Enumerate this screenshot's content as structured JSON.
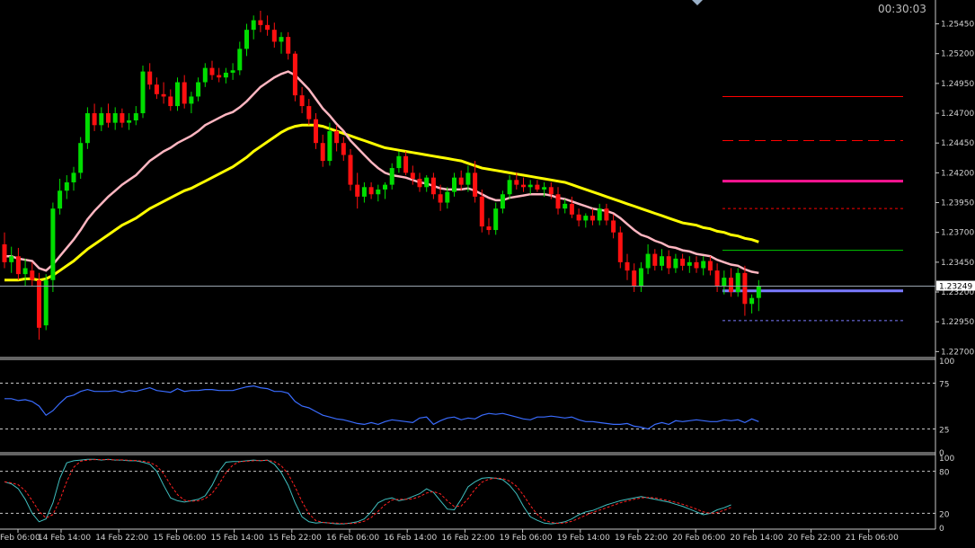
{
  "timer": "00:30:03",
  "colors": {
    "bull": "#00dd00",
    "bear": "#ff1010",
    "ma_fast": "#ffb6c1",
    "ma_slow": "#ffff00",
    "rsi": "#3a6cff",
    "stoch_main": "#40c0c0",
    "stoch_signal": "#ff2020",
    "pivot": "#ff0000",
    "pivot_strong": "#ff1493",
    "support": "#00cc00",
    "current_level": "#7b7bff",
    "price_line": "#9aa4b0"
  },
  "chart_data": {
    "type": "candlestick",
    "price_axis": {
      "ticks": [
        "1.25450",
        "1.25200",
        "1.24950",
        "1.24700",
        "1.24450",
        "1.24200",
        "1.23950",
        "1.23700",
        "1.23450",
        "1.23200",
        "1.22950",
        "1.22700"
      ],
      "range": [
        1.2265,
        1.2565
      ]
    },
    "current_price": "1.23249",
    "time_axis": {
      "labels": [
        "Feb 06:00",
        "14 Feb 14:00",
        "14 Feb 22:00",
        "15 Feb 06:00",
        "15 Feb 14:00",
        "15 Feb 22:00",
        "16 Feb 06:00",
        "16 Feb 14:00",
        "16 Feb 22:00",
        "19 Feb 06:00",
        "19 Feb 14:00",
        "19 Feb 22:00",
        "20 Feb 06:00",
        "20 Feb 14:00",
        "20 Feb 22:00",
        "21 Feb 06:00"
      ]
    },
    "ohlc": [
      [
        1.236,
        1.237,
        1.234,
        1.2345
      ],
      [
        1.2345,
        1.2358,
        1.2336,
        1.235
      ],
      [
        1.235,
        1.2357,
        1.233,
        1.2335
      ],
      [
        1.2335,
        1.2348,
        1.2325,
        1.234
      ],
      [
        1.2338,
        1.2345,
        1.2325,
        1.233
      ],
      [
        1.233,
        1.2336,
        1.228,
        1.229
      ],
      [
        1.2292,
        1.2335,
        1.2288,
        1.233
      ],
      [
        1.233,
        1.2395,
        1.232,
        1.239
      ],
      [
        1.239,
        1.2415,
        1.2385,
        1.2405
      ],
      [
        1.2405,
        1.2418,
        1.2398,
        1.2412
      ],
      [
        1.2412,
        1.2425,
        1.2405,
        1.242
      ],
      [
        1.242,
        1.245,
        1.2415,
        1.2445
      ],
      [
        1.2445,
        1.2475,
        1.244,
        1.247
      ],
      [
        1.247,
        1.2478,
        1.2455,
        1.246
      ],
      [
        1.246,
        1.2475,
        1.2455,
        1.247
      ],
      [
        1.247,
        1.2478,
        1.2458,
        1.2462
      ],
      [
        1.2462,
        1.2475,
        1.2456,
        1.247
      ],
      [
        1.247,
        1.2474,
        1.2458,
        1.2462
      ],
      [
        1.2462,
        1.247,
        1.2456,
        1.2464
      ],
      [
        1.2464,
        1.2476,
        1.246,
        1.247
      ],
      [
        1.247,
        1.251,
        1.2466,
        1.2505
      ],
      [
        1.2505,
        1.2512,
        1.249,
        1.2494
      ],
      [
        1.2494,
        1.25,
        1.2482,
        1.2486
      ],
      [
        1.2486,
        1.2496,
        1.2478,
        1.2484
      ],
      [
        1.2484,
        1.249,
        1.2472,
        1.2476
      ],
      [
        1.2476,
        1.25,
        1.2472,
        1.2496
      ],
      [
        1.2496,
        1.2502,
        1.2474,
        1.2478
      ],
      [
        1.2478,
        1.2488,
        1.247,
        1.2484
      ],
      [
        1.2484,
        1.25,
        1.248,
        1.2496
      ],
      [
        1.2496,
        1.2512,
        1.2492,
        1.2508
      ],
      [
        1.2508,
        1.2514,
        1.2498,
        1.2502
      ],
      [
        1.2502,
        1.2508,
        1.2496,
        1.25
      ],
      [
        1.25,
        1.2508,
        1.2495,
        1.2504
      ],
      [
        1.2504,
        1.2512,
        1.2498,
        1.2506
      ],
      [
        1.2506,
        1.253,
        1.2502,
        1.2524
      ],
      [
        1.2524,
        1.2545,
        1.2518,
        1.254
      ],
      [
        1.254,
        1.2552,
        1.2532,
        1.2548
      ],
      [
        1.2548,
        1.2556,
        1.2538,
        1.2544
      ],
      [
        1.2544,
        1.2552,
        1.2535,
        1.254
      ],
      [
        1.254,
        1.2546,
        1.2525,
        1.253
      ],
      [
        1.253,
        1.2538,
        1.252,
        1.2534
      ],
      [
        1.2534,
        1.2538,
        1.2515,
        1.252
      ],
      [
        1.252,
        1.2522,
        1.248,
        1.2485
      ],
      [
        1.2485,
        1.2492,
        1.247,
        1.2476
      ],
      [
        1.2476,
        1.2482,
        1.246,
        1.2465
      ],
      [
        1.2465,
        1.247,
        1.244,
        1.2445
      ],
      [
        1.2445,
        1.2452,
        1.2425,
        1.243
      ],
      [
        1.243,
        1.2462,
        1.2426,
        1.2455
      ],
      [
        1.2455,
        1.246,
        1.2438,
        1.2445
      ],
      [
        1.2445,
        1.245,
        1.243,
        1.2435
      ],
      [
        1.2435,
        1.244,
        1.2405,
        1.241
      ],
      [
        1.241,
        1.242,
        1.239,
        1.24
      ],
      [
        1.24,
        1.2412,
        1.2395,
        1.2408
      ],
      [
        1.2408,
        1.2412,
        1.2398,
        1.2402
      ],
      [
        1.2402,
        1.241,
        1.2396,
        1.2406
      ],
      [
        1.2406,
        1.2412,
        1.2398,
        1.241
      ],
      [
        1.241,
        1.2428,
        1.2406,
        1.2424
      ],
      [
        1.2424,
        1.2438,
        1.242,
        1.2434
      ],
      [
        1.2434,
        1.2438,
        1.2418,
        1.242
      ],
      [
        1.242,
        1.2426,
        1.241,
        1.2415
      ],
      [
        1.2415,
        1.242,
        1.2404,
        1.2408
      ],
      [
        1.2408,
        1.2418,
        1.2404,
        1.2416
      ],
      [
        1.2416,
        1.242,
        1.2398,
        1.2402
      ],
      [
        1.2402,
        1.241,
        1.2388,
        1.2395
      ],
      [
        1.2395,
        1.2408,
        1.239,
        1.2404
      ],
      [
        1.2404,
        1.242,
        1.24,
        1.2416
      ],
      [
        1.2416,
        1.2422,
        1.2405,
        1.241
      ],
      [
        1.241,
        1.2426,
        1.2404,
        1.242
      ],
      [
        1.242,
        1.243,
        1.2395,
        1.24
      ],
      [
        1.24,
        1.2406,
        1.237,
        1.2375
      ],
      [
        1.2375,
        1.2382,
        1.2368,
        1.2372
      ],
      [
        1.2372,
        1.2395,
        1.2368,
        1.239
      ],
      [
        1.239,
        1.2405,
        1.2386,
        1.2402
      ],
      [
        1.2402,
        1.2418,
        1.2398,
        1.2414
      ],
      [
        1.2414,
        1.242,
        1.2406,
        1.241
      ],
      [
        1.241,
        1.2416,
        1.2404,
        1.2408
      ],
      [
        1.2408,
        1.2414,
        1.2402,
        1.241
      ],
      [
        1.241,
        1.2414,
        1.2404,
        1.2406
      ],
      [
        1.2406,
        1.2412,
        1.24,
        1.2408
      ],
      [
        1.2408,
        1.2412,
        1.2398,
        1.2402
      ],
      [
        1.2402,
        1.2408,
        1.2385,
        1.239
      ],
      [
        1.239,
        1.2398,
        1.2386,
        1.2394
      ],
      [
        1.2394,
        1.24,
        1.2382,
        1.2385
      ],
      [
        1.2385,
        1.239,
        1.2375,
        1.238
      ],
      [
        1.238,
        1.2386,
        1.2374,
        1.2384
      ],
      [
        1.2384,
        1.239,
        1.2376,
        1.238
      ],
      [
        1.238,
        1.2394,
        1.2376,
        1.239
      ],
      [
        1.239,
        1.2394,
        1.2376,
        1.238
      ],
      [
        1.238,
        1.2385,
        1.2365,
        1.237
      ],
      [
        1.237,
        1.2375,
        1.234,
        1.2345
      ],
      [
        1.2345,
        1.2352,
        1.233,
        1.2338
      ],
      [
        1.2338,
        1.2344,
        1.232,
        1.2325
      ],
      [
        1.2325,
        1.2345,
        1.232,
        1.234
      ],
      [
        1.234,
        1.236,
        1.2335,
        1.2352
      ],
      [
        1.2352,
        1.2356,
        1.2338,
        1.2342
      ],
      [
        1.2342,
        1.2356,
        1.2338,
        1.235
      ],
      [
        1.235,
        1.2355,
        1.2335,
        1.234
      ],
      [
        1.234,
        1.2352,
        1.2336,
        1.2348
      ],
      [
        1.2348,
        1.2352,
        1.2338,
        1.2342
      ],
      [
        1.2342,
        1.235,
        1.2336,
        1.2345
      ],
      [
        1.2345,
        1.235,
        1.2336,
        1.234
      ],
      [
        1.234,
        1.235,
        1.2334,
        1.2346
      ],
      [
        1.2346,
        1.235,
        1.2334,
        1.2338
      ],
      [
        1.2338,
        1.2344,
        1.232,
        1.2325
      ],
      [
        1.2325,
        1.2338,
        1.2318,
        1.2332
      ],
      [
        1.2332,
        1.234,
        1.2316,
        1.232
      ],
      [
        1.232,
        1.234,
        1.2316,
        1.2336
      ],
      [
        1.2336,
        1.2342,
        1.23,
        1.231
      ],
      [
        1.231,
        1.2318,
        1.2302,
        1.2315
      ],
      [
        1.2315,
        1.233,
        1.2304,
        1.2325
      ]
    ],
    "ma_fast": [
      1.235,
      1.235,
      1.2348,
      1.2347,
      1.2346,
      1.234,
      1.2338,
      1.2343,
      1.235,
      1.2357,
      1.2364,
      1.2372,
      1.2381,
      1.2388,
      1.2394,
      1.24,
      1.2405,
      1.241,
      1.2414,
      1.2418,
      1.2424,
      1.243,
      1.2434,
      1.2438,
      1.2441,
      1.2445,
      1.2448,
      1.2451,
      1.2455,
      1.246,
      1.2463,
      1.2466,
      1.2469,
      1.2471,
      1.2475,
      1.248,
      1.2486,
      1.2492,
      1.2496,
      1.25,
      1.2503,
      1.2505,
      1.2502,
      1.2496,
      1.249,
      1.2482,
      1.2474,
      1.2468,
      1.2461,
      1.2455,
      1.2447,
      1.2441,
      1.2435,
      1.2429,
      1.2424,
      1.242,
      1.2418,
      1.2417,
      1.2416,
      1.2414,
      1.2412,
      1.2411,
      1.2409,
      1.2407,
      1.2406,
      1.2406,
      1.2406,
      1.2407,
      1.2405,
      1.2402,
      1.2399,
      1.2397,
      1.2397,
      1.2399,
      1.24,
      1.2401,
      1.2402,
      1.2402,
      1.2402,
      1.2401,
      1.2399,
      1.2398,
      1.2396,
      1.2394,
      1.2392,
      1.239,
      1.2389,
      1.2388,
      1.2386,
      1.2382,
      1.2377,
      1.2372,
      1.2368,
      1.2366,
      1.2363,
      1.2361,
      1.2358,
      1.2357,
      1.2355,
      1.2354,
      1.2352,
      1.2351,
      1.235,
      1.2347,
      1.2345,
      1.2343,
      1.2342,
      1.2339,
      1.2337,
      1.2336
    ],
    "ma_slow": [
      1.233,
      1.233,
      1.233,
      1.2331,
      1.2331,
      1.233,
      1.2331,
      1.2334,
      1.2338,
      1.2342,
      1.2346,
      1.2351,
      1.2356,
      1.236,
      1.2364,
      1.2368,
      1.2372,
      1.2376,
      1.2379,
      1.2382,
      1.2386,
      1.239,
      1.2393,
      1.2396,
      1.2399,
      1.2402,
      1.2405,
      1.2407,
      1.241,
      1.2413,
      1.2416,
      1.2419,
      1.2422,
      1.2425,
      1.2429,
      1.2433,
      1.2438,
      1.2442,
      1.2446,
      1.245,
      1.2454,
      1.2457,
      1.2459,
      1.246,
      1.246,
      1.246,
      1.2459,
      1.2457,
      1.2455,
      1.2453,
      1.2451,
      1.2449,
      1.2447,
      1.2445,
      1.2443,
      1.2441,
      1.244,
      1.2439,
      1.2438,
      1.2437,
      1.2436,
      1.2435,
      1.2434,
      1.2433,
      1.2432,
      1.2431,
      1.243,
      1.2428,
      1.2426,
      1.2424,
      1.2423,
      1.2422,
      1.2421,
      1.242,
      1.2419,
      1.2418,
      1.2417,
      1.2416,
      1.2415,
      1.2414,
      1.2413,
      1.2412,
      1.241,
      1.2408,
      1.2406,
      1.2404,
      1.2402,
      1.24,
      1.2398,
      1.2396,
      1.2394,
      1.2392,
      1.239,
      1.2388,
      1.2386,
      1.2384,
      1.2382,
      1.238,
      1.2378,
      1.2377,
      1.2376,
      1.2374,
      1.2373,
      1.2371,
      1.237,
      1.2368,
      1.2367,
      1.2365,
      1.2364,
      1.2362
    ],
    "levels": [
      {
        "price": 1.2484,
        "style": "solid",
        "color": "pivot"
      },
      {
        "price": 1.2447,
        "style": "dash",
        "color": "pivot"
      },
      {
        "price": 1.2413,
        "style": "thick",
        "color": "pivot_strong"
      },
      {
        "price": 1.239,
        "style": "dot",
        "color": "pivot"
      },
      {
        "price": 1.2355,
        "style": "solid",
        "color": "support"
      },
      {
        "price": 1.2321,
        "style": "thick",
        "color": "current_level"
      },
      {
        "price": 1.2296,
        "style": "dot",
        "color": "current_level"
      }
    ],
    "rsi": {
      "ticks": [
        "100",
        "75",
        "25",
        "0"
      ],
      "levels": [
        75,
        25
      ],
      "values": [
        58,
        58,
        56,
        57,
        55,
        50,
        40,
        45,
        53,
        60,
        62,
        66,
        68,
        66,
        66,
        66,
        67,
        65,
        67,
        66,
        68,
        70,
        67,
        66,
        65,
        69,
        66,
        67,
        67,
        68,
        68,
        67,
        67,
        67,
        69,
        71,
        72,
        70,
        69,
        66,
        66,
        64,
        55,
        50,
        48,
        44,
        40,
        38,
        36,
        35,
        33,
        31,
        30,
        32,
        30,
        33,
        35,
        34,
        33,
        32,
        37,
        38,
        30,
        34,
        37,
        38,
        35,
        37,
        36,
        40,
        42,
        41,
        42,
        40,
        38,
        36,
        35,
        38,
        38,
        39,
        38,
        37,
        38,
        35,
        33,
        33,
        32,
        31,
        30,
        30,
        31,
        28,
        27,
        25,
        30,
        32,
        30,
        34,
        33,
        34,
        35,
        34,
        33,
        33,
        35,
        34,
        35,
        32,
        36,
        33
      ]
    },
    "stochastic": {
      "ticks": [
        "100",
        "80",
        "20",
        "0"
      ],
      "levels": [
        80,
        20
      ],
      "main": [
        65,
        62,
        55,
        40,
        20,
        8,
        12,
        35,
        70,
        92,
        95,
        96,
        97,
        97,
        96,
        97,
        96,
        96,
        95,
        95,
        93,
        90,
        80,
        60,
        42,
        38,
        36,
        38,
        40,
        45,
        60,
        80,
        93,
        94,
        94,
        95,
        96,
        95,
        96,
        90,
        78,
        60,
        35,
        15,
        8,
        6,
        7,
        6,
        5,
        5,
        6,
        8,
        12,
        22,
        35,
        40,
        42,
        38,
        40,
        44,
        48,
        55,
        50,
        38,
        26,
        25,
        40,
        58,
        65,
        70,
        71,
        70,
        68,
        60,
        48,
        30,
        15,
        10,
        6,
        5,
        6,
        8,
        12,
        18,
        22,
        24,
        28,
        32,
        35,
        38,
        40,
        42,
        44,
        42,
        40,
        38,
        36,
        33,
        30,
        26,
        22,
        18,
        20,
        25,
        28,
        32
      ]
    }
  }
}
